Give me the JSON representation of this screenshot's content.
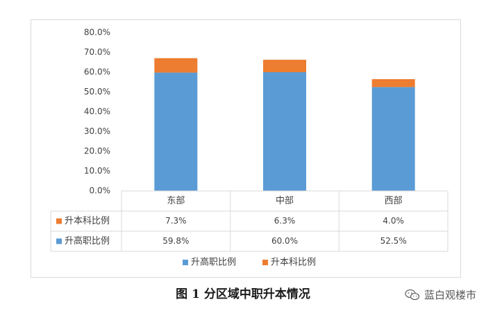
{
  "chart_data": {
    "type": "bar",
    "stacked": true,
    "categories": [
      "东部",
      "中部",
      "西部"
    ],
    "series": [
      {
        "name": "升高职比例",
        "values": [
          59.8,
          60.0,
          52.5
        ],
        "labels": [
          "59.8%",
          "60.0%",
          "52.5%"
        ],
        "color": "#5b9bd5"
      },
      {
        "name": "升本科比例",
        "values": [
          7.3,
          6.3,
          4.0
        ],
        "labels": [
          "7.3%",
          "6.3%",
          "4.0%"
        ],
        "color": "#ed7d31"
      }
    ],
    "ylim": [
      0,
      80
    ],
    "yticks": [
      "0.0%",
      "10.0%",
      "20.0%",
      "30.0%",
      "40.0%",
      "50.0%",
      "60.0%",
      "70.0%",
      "80.0%"
    ],
    "data_table": true,
    "legend": "bottom"
  },
  "caption": "图 1  分区域中职升本情况",
  "watermark": "蓝白观楼市",
  "colors": {
    "axis_text": "#404040",
    "grid_line": "#d9d9d9"
  }
}
